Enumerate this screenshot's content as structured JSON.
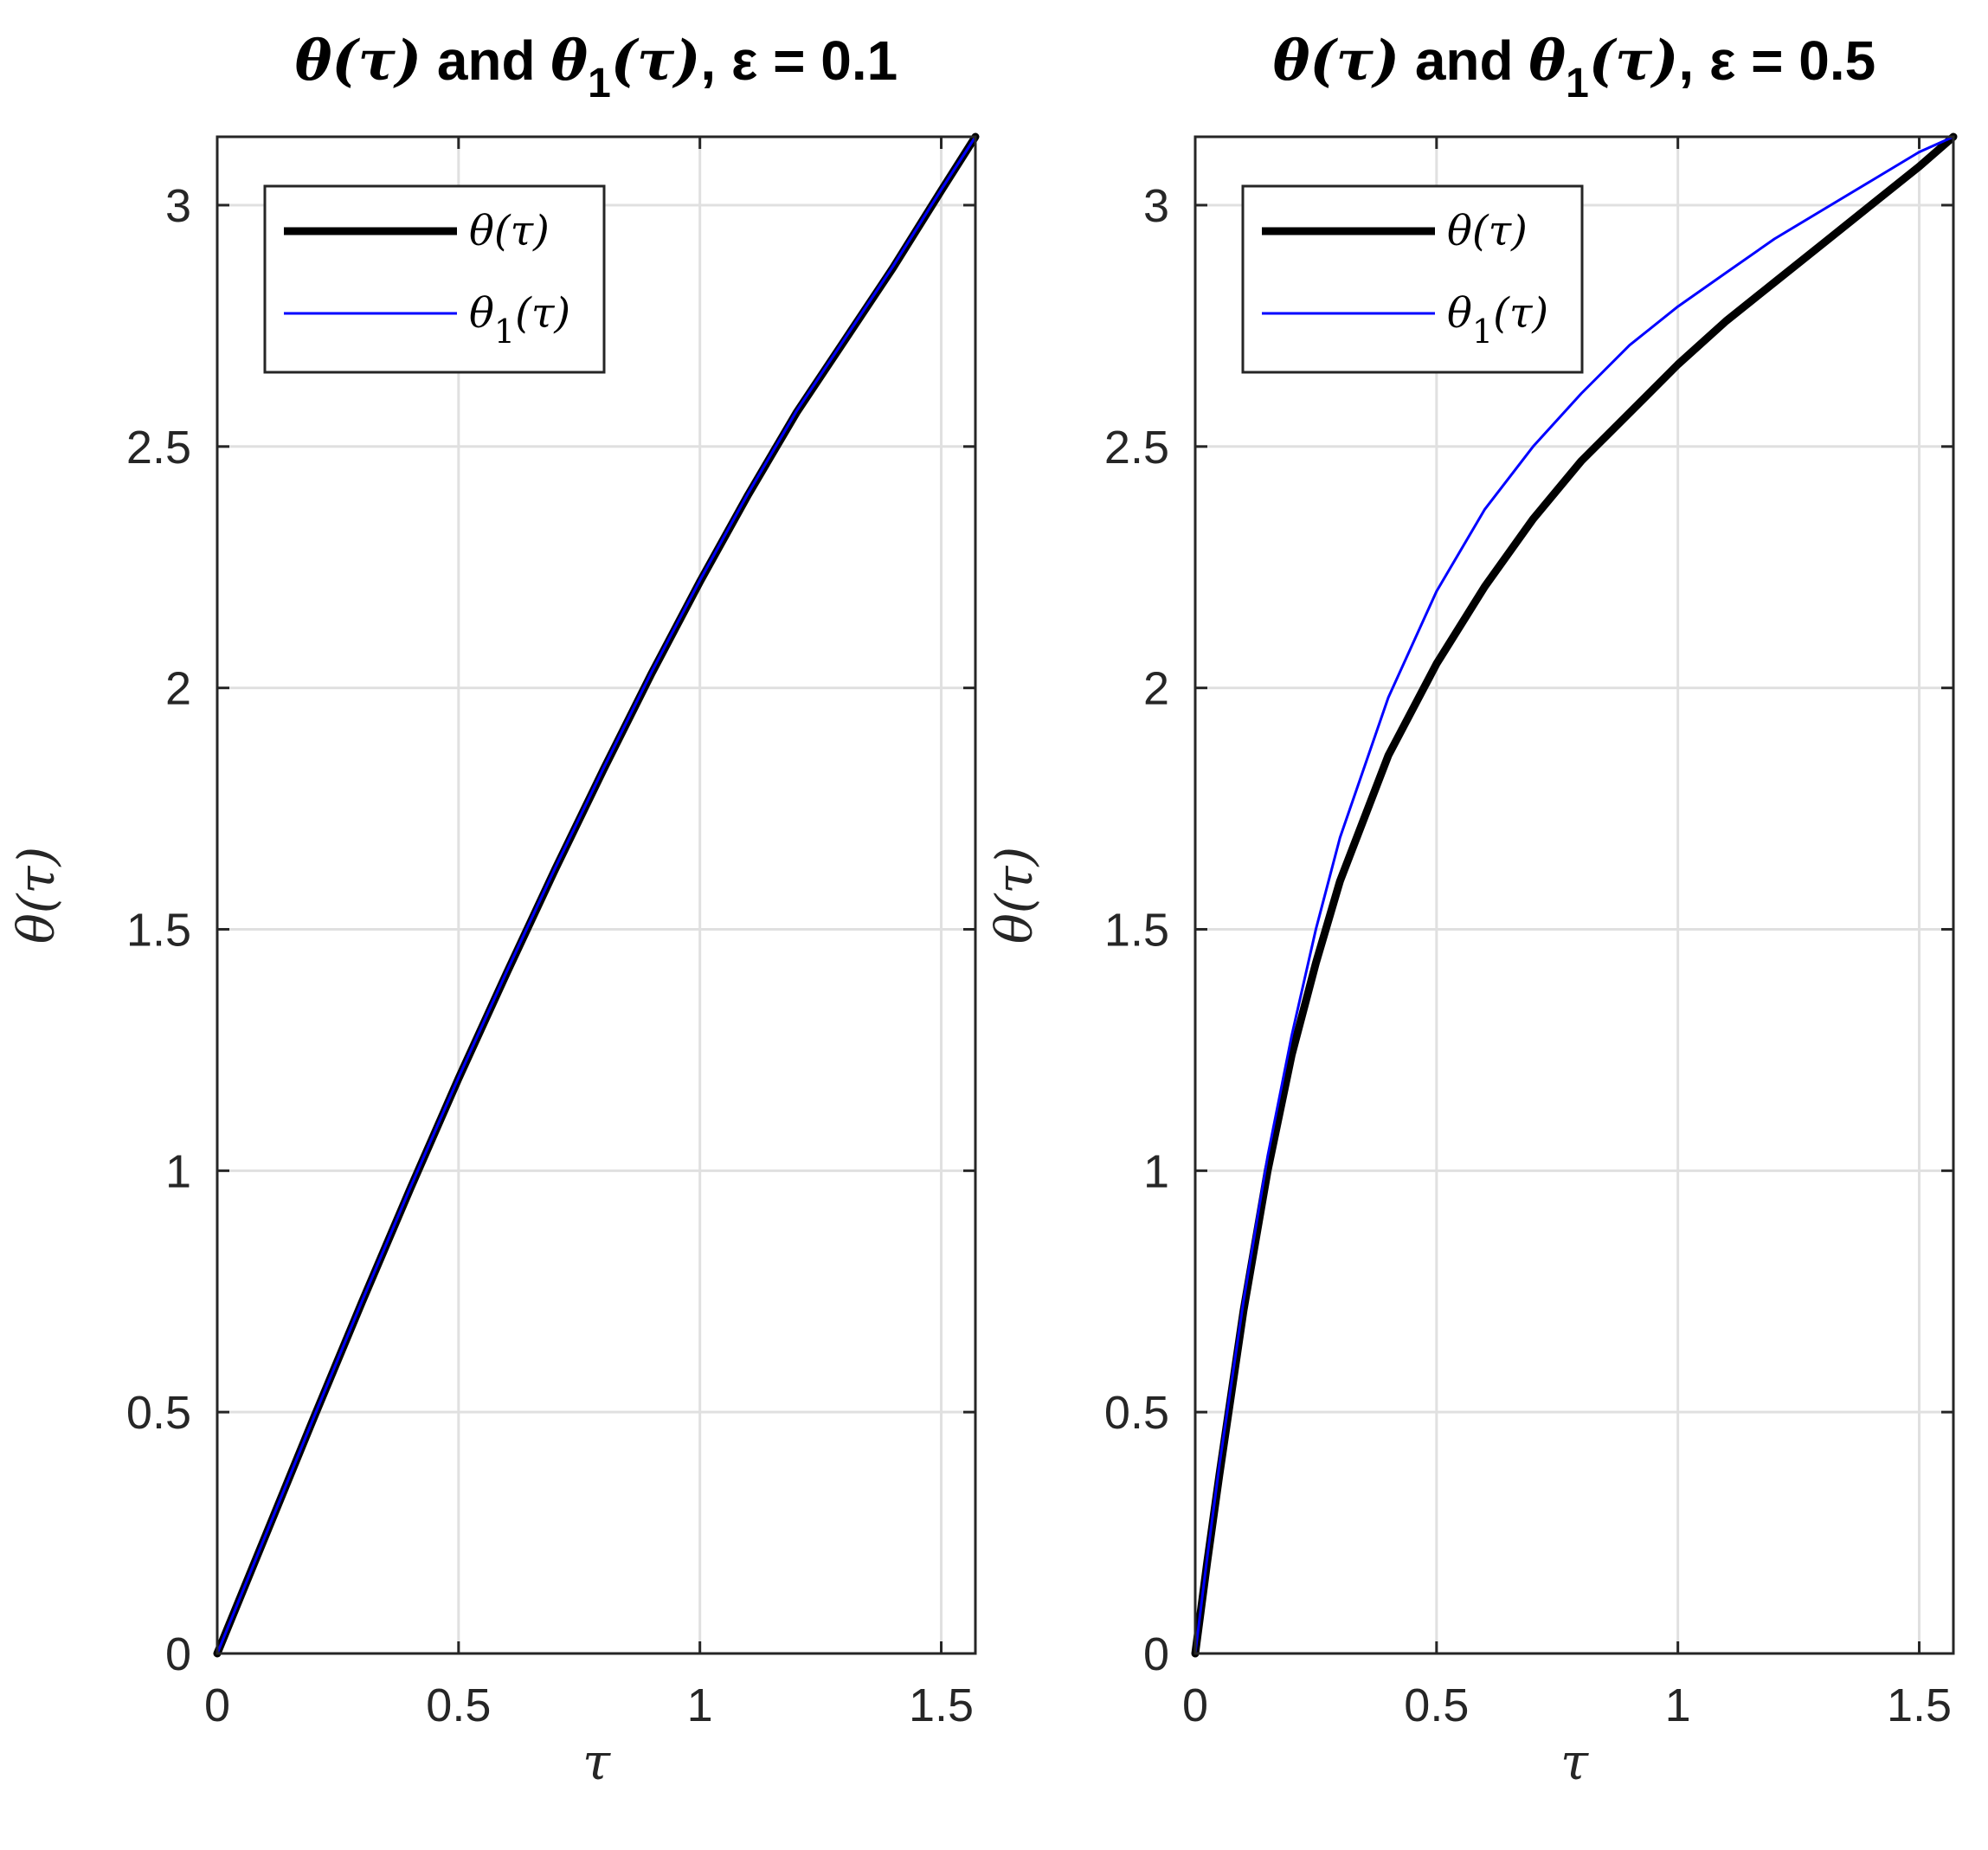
{
  "chart_data": [
    {
      "type": "line",
      "title": {
        "prefix": "θ(τ)",
        "mid": " and ",
        "sym": "θ",
        "sub": "1",
        "post": "(τ)",
        "suffix": ", ε = 0.1"
      },
      "xlabel": "τ",
      "ylabel": "θ(τ)",
      "xlim": [
        0,
        1.5708
      ],
      "ylim": [
        0,
        3.1416
      ],
      "xticks": [
        0,
        0.5,
        1,
        1.5
      ],
      "xtick_labels": [
        "0",
        "0.5",
        "1",
        "1.5"
      ],
      "yticks": [
        0,
        0.5,
        1,
        1.5,
        2,
        2.5,
        3
      ],
      "ytick_labels": [
        "0",
        "0.5",
        "1",
        "1.5",
        "2",
        "2.5",
        "3"
      ],
      "grid": true,
      "legend_position": "top-left",
      "series": [
        {
          "name": "θ(τ)",
          "color": "#000000",
          "style": "thick",
          "x": [
            0,
            0.1,
            0.2,
            0.3,
            0.4,
            0.5,
            0.6,
            0.7,
            0.8,
            0.9,
            1.0,
            1.1,
            1.2,
            1.3,
            1.4,
            1.5,
            1.5708
          ],
          "y": [
            0,
            0.244,
            0.488,
            0.728,
            0.963,
            1.191,
            1.41,
            1.624,
            1.83,
            2.03,
            2.22,
            2.4,
            2.57,
            2.72,
            2.87,
            3.03,
            3.1416
          ]
        },
        {
          "name": "θ1(τ)",
          "color": "#0000ff",
          "style": "thin",
          "x": [
            0,
            0.1,
            0.2,
            0.3,
            0.4,
            0.5,
            0.6,
            0.7,
            0.8,
            0.9,
            1.0,
            1.1,
            1.2,
            1.3,
            1.4,
            1.5,
            1.5708
          ],
          "y": [
            0,
            0.245,
            0.489,
            0.73,
            0.965,
            1.193,
            1.413,
            1.627,
            1.833,
            2.033,
            2.223,
            2.403,
            2.573,
            2.723,
            2.873,
            3.032,
            3.1416
          ]
        }
      ]
    },
    {
      "type": "line",
      "title": {
        "prefix": "θ(τ)",
        "mid": " and ",
        "sym": "θ",
        "sub": "1",
        "post": "(τ)",
        "suffix": ", ε = 0.5"
      },
      "xlabel": "τ",
      "ylabel": "θ(τ)",
      "xlim": [
        0,
        1.5708
      ],
      "ylim": [
        0,
        3.1416
      ],
      "xticks": [
        0,
        0.5,
        1,
        1.5
      ],
      "xtick_labels": [
        "0",
        "0.5",
        "1",
        "1.5"
      ],
      "yticks": [
        0,
        0.5,
        1,
        1.5,
        2,
        2.5,
        3
      ],
      "ytick_labels": [
        "0",
        "0.5",
        "1",
        "1.5",
        "2",
        "2.5",
        "3"
      ],
      "grid": true,
      "legend_position": "top-left",
      "series": [
        {
          "name": "θ(τ)",
          "color": "#000000",
          "style": "thick",
          "x": [
            0,
            0.025,
            0.05,
            0.1,
            0.15,
            0.2,
            0.25,
            0.3,
            0.4,
            0.5,
            0.6,
            0.7,
            0.8,
            0.9,
            1.0,
            1.1,
            1.2,
            1.3,
            1.4,
            1.5,
            1.5708
          ],
          "y": [
            0,
            0.19,
            0.37,
            0.71,
            1.0,
            1.24,
            1.43,
            1.6,
            1.86,
            2.05,
            2.21,
            2.35,
            2.47,
            2.57,
            2.67,
            2.76,
            2.84,
            2.92,
            3.0,
            3.08,
            3.1416
          ]
        },
        {
          "name": "θ1(τ)",
          "color": "#0000ff",
          "style": "thin",
          "x": [
            0,
            0.025,
            0.05,
            0.1,
            0.15,
            0.2,
            0.25,
            0.3,
            0.4,
            0.5,
            0.6,
            0.7,
            0.8,
            0.9,
            1.0,
            1.1,
            1.2,
            1.3,
            1.4,
            1.5,
            1.5708
          ],
          "y": [
            0,
            0.2,
            0.39,
            0.73,
            1.03,
            1.28,
            1.5,
            1.69,
            1.98,
            2.2,
            2.37,
            2.5,
            2.61,
            2.71,
            2.79,
            2.86,
            2.93,
            2.99,
            3.05,
            3.11,
            3.1416
          ]
        }
      ]
    }
  ]
}
